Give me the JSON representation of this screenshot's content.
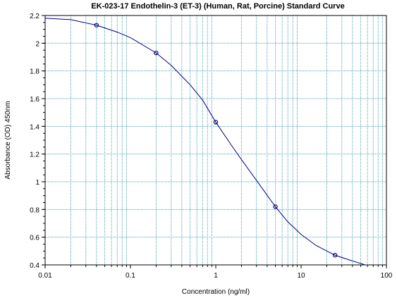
{
  "chart_data": {
    "type": "line",
    "title": "EK-023-17 Endothelin-3 (ET-3) (Human, Rat, Porcine) Standard Curve",
    "xlabel": "Concentration (ng/ml)",
    "ylabel": "Absorbance (OD) 450nm",
    "x_scale": "log",
    "xlim": [
      0.01,
      100
    ],
    "ylim": [
      0.4,
      2.2
    ],
    "grid": true,
    "x_tick_labels": [
      "0.01",
      "0.1",
      "1",
      "10",
      "100"
    ],
    "y_tick_labels": [
      "0.4",
      "0.6",
      "0.8",
      "1",
      "1.2",
      "1.4",
      "1.6",
      "1.8",
      "2",
      "2.2"
    ],
    "points": [
      {
        "x": 0.04,
        "y": 2.13
      },
      {
        "x": 0.2,
        "y": 1.93
      },
      {
        "x": 1,
        "y": 1.43
      },
      {
        "x": 5,
        "y": 0.82
      },
      {
        "x": 25,
        "y": 0.47
      }
    ],
    "fit_curve": {
      "x": [
        0.01,
        0.02,
        0.04,
        0.07,
        0.1,
        0.2,
        0.3,
        0.5,
        0.7,
        1,
        1.5,
        2,
        3,
        5,
        7,
        10,
        15,
        20,
        25,
        35,
        50,
        56
      ],
      "y": [
        2.18,
        2.17,
        2.13,
        2.08,
        2.04,
        1.93,
        1.84,
        1.7,
        1.59,
        1.43,
        1.27,
        1.16,
        1.01,
        0.82,
        0.71,
        0.62,
        0.54,
        0.5,
        0.47,
        0.44,
        0.41,
        0.4
      ]
    },
    "colors": {
      "curve": "#000080",
      "points": "#000080",
      "grid": "#4ba3b8"
    }
  }
}
